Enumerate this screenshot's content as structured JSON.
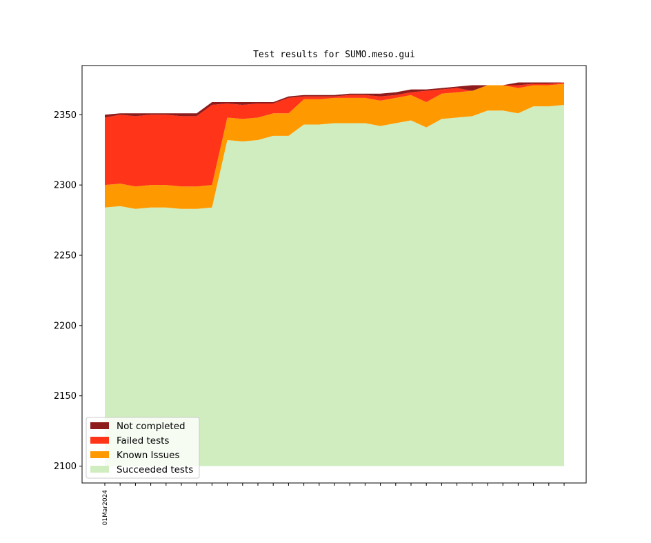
{
  "chart_data": {
    "type": "area",
    "stacked": true,
    "title": "Test results for SUMO.meso.gui",
    "xlabel": "",
    "ylabel": "",
    "ylim": [
      2088,
      2385
    ],
    "yticks": [
      2100,
      2150,
      2200,
      2250,
      2300,
      2350
    ],
    "x_tick_labels": [
      "01Mar2024"
    ],
    "grid": false,
    "legend_position": "lower-left",
    "baseline": 2100,
    "x": [
      0,
      1,
      2,
      3,
      4,
      5,
      6,
      7,
      8,
      9,
      10,
      11,
      12,
      13,
      14,
      15,
      16,
      17,
      18,
      19,
      20,
      21,
      22,
      23,
      24,
      25,
      26,
      27,
      28,
      29,
      30
    ],
    "series": [
      {
        "name": "Succeeded tests",
        "color": "#cfedbf",
        "values": [
          2284,
          2285,
          2283,
          2284,
          2284,
          2283,
          2283,
          2284,
          2332,
          2331,
          2332,
          2335,
          2335,
          2343,
          2343,
          2344,
          2344,
          2344,
          2342,
          2344,
          2346,
          2341,
          2347,
          2348,
          2349,
          2353,
          2353,
          2351,
          2356,
          2356,
          2357
        ]
      },
      {
        "name": "Known Issues",
        "color": "#ff9900",
        "values": [
          2300,
          2301,
          2299,
          2300,
          2300,
          2299,
          2299,
          2300,
          2348,
          2347,
          2348,
          2351,
          2351,
          2361,
          2361,
          2362,
          2362,
          2362,
          2360,
          2362,
          2364,
          2359,
          2365,
          2366,
          2367,
          2371,
          2371,
          2369,
          2371,
          2371,
          2372
        ]
      },
      {
        "name": "Failed tests",
        "color": "#ff3419",
        "values": [
          2348,
          2350,
          2349,
          2350,
          2350,
          2349,
          2349,
          2357,
          2358,
          2357,
          2358,
          2358,
          2362,
          2363,
          2363,
          2363,
          2364,
          2364,
          2363,
          2364,
          2366,
          2367,
          2368,
          2369,
          2367,
          2371,
          2371,
          2371,
          2372,
          2372,
          2373
        ]
      },
      {
        "name": "Not completed",
        "color": "#8f1c1c",
        "values": [
          2350,
          2351,
          2351,
          2351,
          2351,
          2351,
          2351,
          2359,
          2359,
          2359,
          2359,
          2359,
          2363,
          2364,
          2364,
          2364,
          2365,
          2365,
          2365,
          2366,
          2368,
          2368,
          2369,
          2370,
          2371,
          2371,
          2371,
          2373,
          2373,
          2373,
          2373
        ]
      }
    ],
    "legend_order": [
      "Not completed",
      "Failed tests",
      "Known Issues",
      "Succeeded tests"
    ]
  }
}
